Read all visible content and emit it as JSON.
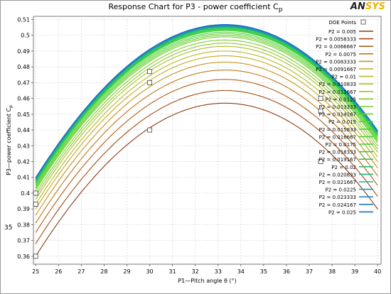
{
  "chart_title": "Response Chart for P3 - power coefficient C",
  "chart_title_sub": "p",
  "logo": {
    "left": "AN",
    "right": "SYS"
  },
  "side_number": "35",
  "chart_data": {
    "type": "line",
    "xlabel": "P1—Pitch angle θ (°)",
    "ylabel": "P3—power coefficient C",
    "ylabel_sub": "p",
    "xlim": [
      24.9,
      40.15
    ],
    "ylim": [
      0.355,
      0.512
    ],
    "xticks": [
      "25",
      "26",
      "27",
      "28",
      "29",
      "30",
      "31",
      "32",
      "33",
      "34",
      "35",
      "36",
      "37",
      "38",
      "39",
      "40"
    ],
    "yticks": [
      "0.36",
      "0.37",
      "0.38",
      "0.39",
      "0.4",
      "0.41",
      "0.42",
      "0.43",
      "0.44",
      "0.45",
      "0.46",
      "0.47",
      "0.48",
      "0.49",
      "0.5",
      "0.51"
    ],
    "grid": true,
    "legend_position": "right",
    "doe_label": "DOE Points",
    "doe_points": [
      {
        "x": 25.0,
        "y": 0.36
      },
      {
        "x": 25.0,
        "y": 0.393
      },
      {
        "x": 25.0,
        "y": 0.4
      },
      {
        "x": 30.0,
        "y": 0.44
      },
      {
        "x": 30.0,
        "y": 0.47
      },
      {
        "x": 30.0,
        "y": 0.477
      },
      {
        "x": 37.5,
        "y": 0.42
      },
      {
        "x": 37.5,
        "y": 0.452
      },
      {
        "x": 37.5,
        "y": 0.46
      }
    ],
    "curve_shape": {
      "x_peak": 33.3,
      "width_scale": 5.6
    },
    "series": [
      {
        "name": "P2 = 0.005",
        "color": "#8b3a12",
        "y25": 0.36,
        "ypeak": 0.457
      },
      {
        "name": "P2 = 0.0058333",
        "color": "#a24a14",
        "y25": 0.368,
        "ypeak": 0.465
      },
      {
        "name": "P2 = 0.0066667",
        "color": "#b25e16",
        "y25": 0.375,
        "ypeak": 0.472
      },
      {
        "name": "P2 = 0.0075",
        "color": "#bf7818",
        "y25": 0.381,
        "ypeak": 0.478
      },
      {
        "name": "P2 = 0.0083333",
        "color": "#c6921c",
        "y25": 0.386,
        "ypeak": 0.483
      },
      {
        "name": "P2 = 0.0091667",
        "color": "#c6a81e",
        "y25": 0.39,
        "ypeak": 0.487
      },
      {
        "name": "P2 = 0.01",
        "color": "#b8b824",
        "y25": 0.393,
        "ypeak": 0.49
      },
      {
        "name": "P2 = 0.010833",
        "color": "#a6c02a",
        "y25": 0.396,
        "ypeak": 0.493
      },
      {
        "name": "P2 = 0.011667",
        "color": "#94c62e",
        "y25": 0.398,
        "ypeak": 0.495
      },
      {
        "name": "P2 = 0.0125",
        "color": "#82ca30",
        "y25": 0.4,
        "ypeak": 0.497
      },
      {
        "name": "P2 = 0.013333",
        "color": "#72ce30",
        "y25": 0.402,
        "ypeak": 0.499
      },
      {
        "name": "P2 = 0.014167",
        "color": "#64d030",
        "y25": 0.403,
        "ypeak": 0.5
      },
      {
        "name": "P2 = 0.015",
        "color": "#58d232",
        "y25": 0.404,
        "ypeak": 0.501
      },
      {
        "name": "P2 = 0.015833",
        "color": "#4ed234",
        "y25": 0.405,
        "ypeak": 0.502
      },
      {
        "name": "P2 = 0.016667",
        "color": "#46d036",
        "y25": 0.406,
        "ypeak": 0.503
      },
      {
        "name": "P2 = 0.0175",
        "color": "#3ece3a",
        "y25": 0.4065,
        "ypeak": 0.5035
      },
      {
        "name": "P2 = 0.018333",
        "color": "#36ca48",
        "y25": 0.407,
        "ypeak": 0.504
      },
      {
        "name": "P2 = 0.019167",
        "color": "#2ec458",
        "y25": 0.4075,
        "ypeak": 0.5045
      },
      {
        "name": "P2 = 0.02",
        "color": "#28be6a",
        "y25": 0.408,
        "ypeak": 0.505
      },
      {
        "name": "P2 = 0.020833",
        "color": "#22b47e",
        "y25": 0.4083,
        "ypeak": 0.5053
      },
      {
        "name": "P2 = 0.021667",
        "color": "#1eaa92",
        "y25": 0.4086,
        "ypeak": 0.5056
      },
      {
        "name": "P2 = 0.0225",
        "color": "#1c9ea6",
        "y25": 0.4089,
        "ypeak": 0.5059
      },
      {
        "name": "P2 = 0.023333",
        "color": "#1c8eb6",
        "y25": 0.4092,
        "ypeak": 0.5062
      },
      {
        "name": "P2 = 0.024167",
        "color": "#1c7cc2",
        "y25": 0.4095,
        "ypeak": 0.5065
      },
      {
        "name": "P2 = 0.025",
        "color": "#1c66c8",
        "y25": 0.4098,
        "ypeak": 0.5068
      }
    ]
  }
}
